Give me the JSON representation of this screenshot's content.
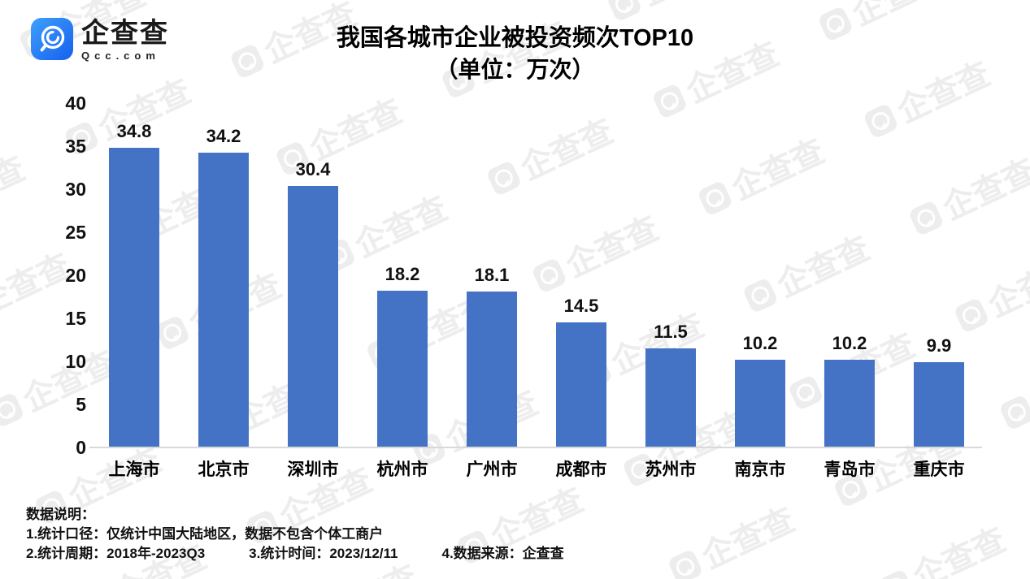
{
  "brand": {
    "name": "企查查",
    "domain": "Qcc.com",
    "logo_icon": "qcc-magnifier-logo",
    "logo_gradient": [
      "#3fa0fc",
      "#1560ee"
    ]
  },
  "title": {
    "line1": "我国各城市企业被投资频次TOP10",
    "line2": "（单位：万次）"
  },
  "chart_data": {
    "type": "bar",
    "title": "我国各城市企业被投资频次TOP10（单位：万次）",
    "categories": [
      "上海市",
      "北京市",
      "深圳市",
      "杭州市",
      "广州市",
      "成都市",
      "苏州市",
      "南京市",
      "青岛市",
      "重庆市"
    ],
    "values": [
      34.8,
      34.2,
      30.4,
      18.2,
      18.1,
      14.5,
      11.5,
      10.2,
      10.2,
      9.9
    ],
    "xlabel": "",
    "ylabel": "",
    "ylim": [
      0,
      40
    ],
    "yticks": [
      0,
      5,
      10,
      15,
      20,
      25,
      30,
      35,
      40
    ],
    "bar_color": "#4472C4",
    "axis_line_color": "#d9d9d9",
    "grid": false,
    "legend": "none",
    "value_labels": true
  },
  "footer": {
    "heading": "数据说明：",
    "line1": "1.统计口径：仅统计中国大陆地区，数据不包含个体工商户",
    "line2_parts": [
      "2.统计周期：2018年-2023Q3",
      "3.统计时间：2023/12/11",
      "4.数据来源：企查查"
    ]
  },
  "watermark": {
    "text": "企查查",
    "color": "#ededed"
  }
}
